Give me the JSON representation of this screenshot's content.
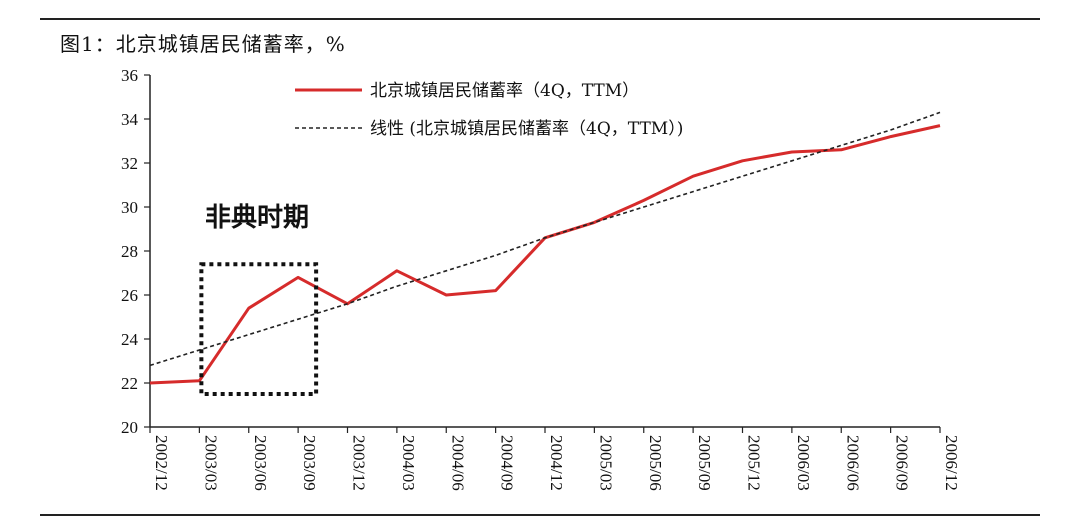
{
  "figure": {
    "title": "图1：北京城镇居民储蓄率，%"
  },
  "chart_data": {
    "type": "line",
    "title": "图1：北京城镇居民储蓄率，%",
    "xlabel": "",
    "ylabel": "",
    "categories": [
      "2002/12",
      "2003/03",
      "2003/06",
      "2003/09",
      "2003/12",
      "2004/03",
      "2004/06",
      "2004/09",
      "2004/12",
      "2005/03",
      "2005/06",
      "2005/09",
      "2005/12",
      "2006/03",
      "2006/06",
      "2006/09",
      "2006/12"
    ],
    "ylim": [
      20,
      36
    ],
    "yticks": [
      20,
      22,
      24,
      26,
      28,
      30,
      32,
      34,
      36
    ],
    "grid": false,
    "legend_position": "top",
    "series": [
      {
        "name": "北京城镇居民储蓄率（4Q，TTM）",
        "style": "solid",
        "color": "#d62b2b",
        "values": [
          22.0,
          22.1,
          25.4,
          26.8,
          25.6,
          27.1,
          26.0,
          26.2,
          28.6,
          29.3,
          30.3,
          31.4,
          32.1,
          32.5,
          32.6,
          33.2,
          33.7
        ]
      },
      {
        "name": "线性 (北京城镇居民储蓄率（4Q，TTM）)",
        "style": "dashed",
        "color": "#222222",
        "values": [
          22.8,
          23.5,
          24.2,
          24.9,
          25.6,
          26.4,
          27.1,
          27.8,
          28.6,
          29.3,
          30.0,
          30.7,
          31.4,
          32.1,
          32.8,
          33.5,
          34.3
        ]
      }
    ],
    "annotation": {
      "text": "非典时期",
      "box_categories": [
        "2003/03",
        "2003/09"
      ],
      "box_range": [
        21.5,
        27.4
      ]
    }
  }
}
